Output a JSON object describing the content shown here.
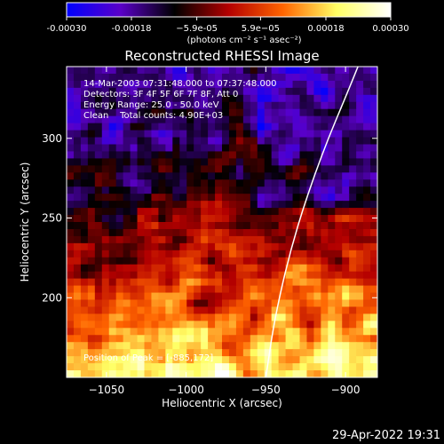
{
  "chart_data": {
    "type": "heatmap",
    "title": "Reconstructed RHESSI Image",
    "xlabel": "Heliocentric X (arcsec)",
    "ylabel": "Heliocentric Y (arcsec)",
    "xlim": [
      -1075,
      -880
    ],
    "ylim": [
      150,
      345
    ],
    "x_ticks": [
      -1050,
      -1000,
      -950,
      -900
    ],
    "x_tick_labels": [
      "−1050",
      "−1000",
      "−950",
      "−900"
    ],
    "y_ticks": [
      200,
      250,
      300
    ],
    "y_tick_labels": [
      "200",
      "250",
      "300"
    ],
    "colorbar": {
      "range": [
        -0.0003,
        0.0003
      ],
      "ticks": [
        -0.0003,
        -0.00018,
        -5.9e-05,
        5.9e-05,
        0.00018,
        0.0003
      ],
      "tick_labels": [
        "-0.00030",
        "-0.00018",
        "−5.9e-05",
        "5.9e−05",
        "0.00018",
        "0.00030"
      ],
      "units": "(photons cm⁻² s⁻¹ asec⁻²)",
      "colors": [
        "#0000ff",
        "#5a00c8",
        "#000000",
        "#b40000",
        "#ff6400",
        "#ffff64",
        "#ffffff"
      ]
    },
    "info_lines": [
      "14-Mar-2003 07:31:48.000 to 07:37:48.000",
      "Detectors: 3F 4F 5F 6F 7F 8F, Att 0",
      "Energy Range: 25.0 - 50.0 keV",
      "Clean    Total counts: 4.90E+03"
    ],
    "peak_label": "Position of Peak = [-885,172]",
    "peak": [
      -885,
      172
    ],
    "limb_curve": [
      [
        -950,
        150
      ],
      [
        -944,
        190
      ],
      [
        -932,
        240
      ],
      [
        -915,
        290
      ],
      [
        -897,
        333
      ],
      [
        -887,
        358
      ]
    ]
  },
  "timestamp": "29-Apr-2022 19:31",
  "colors": {
    "background": "#000000",
    "foreground": "#ffffff"
  }
}
